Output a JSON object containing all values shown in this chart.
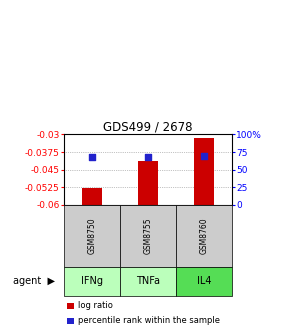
{
  "title": "GDS499 / 2678",
  "samples": [
    "GSM8750",
    "GSM8755",
    "GSM8760"
  ],
  "agents": [
    "IFNg",
    "TNFa",
    "IL4"
  ],
  "log_ratios": [
    -0.0527,
    -0.0415,
    -0.0315
  ],
  "percentile_ranks": [
    68,
    68,
    70
  ],
  "ylim_left": [
    -0.06,
    -0.03
  ],
  "ylim_right": [
    0,
    100
  ],
  "yticks_left": [
    -0.06,
    -0.0525,
    -0.045,
    -0.0375,
    -0.03
  ],
  "ytick_labels_left": [
    "-0.06",
    "-0.0525",
    "-0.045",
    "-0.0375",
    "-0.03"
  ],
  "yticks_right": [
    0,
    25,
    50,
    75,
    100
  ],
  "ytick_labels_right": [
    "0",
    "25",
    "50",
    "75",
    "100%"
  ],
  "bar_color": "#cc0000",
  "dot_color": "#2222cc",
  "agent_colors": [
    "#bbffbb",
    "#bbffbb",
    "#55dd55"
  ],
  "sample_bg_color": "#cccccc",
  "baseline": -0.06,
  "bar_width": 0.35,
  "grid_color": "#888888",
  "dot_size": 22
}
